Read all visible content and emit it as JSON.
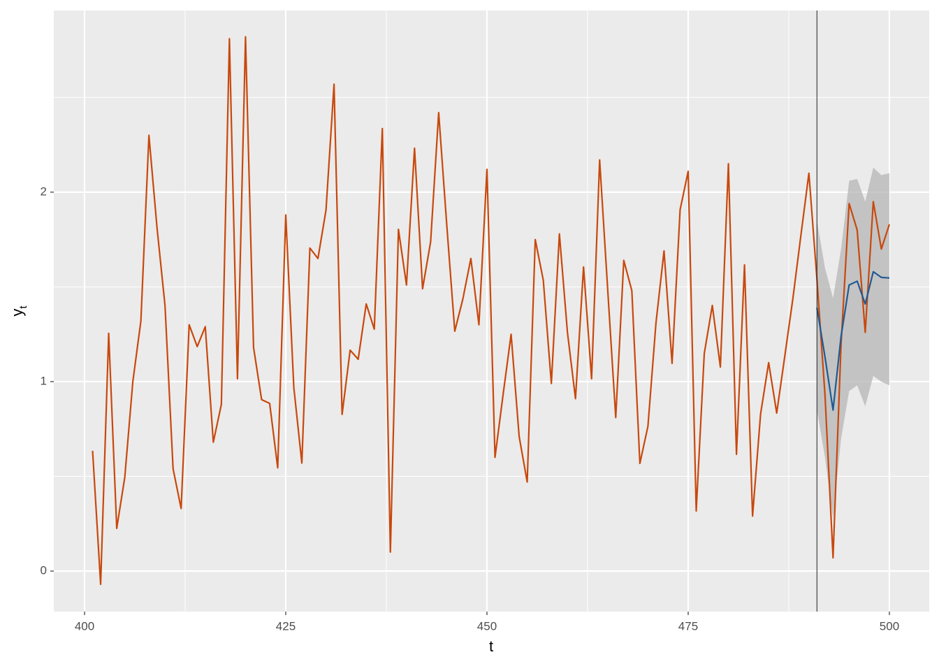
{
  "chart_data": {
    "type": "line",
    "xlabel": "t",
    "ylabel": "y",
    "ylabel_subscript": "t",
    "xlim": [
      396.18,
      504.95
    ],
    "ylim": [
      -0.214,
      2.959
    ],
    "xticks": [
      400,
      425,
      450,
      475,
      500
    ],
    "yticks": [
      0,
      1,
      2
    ],
    "minor_xticks": [
      412.5,
      437.5,
      462.5,
      487.5
    ],
    "minor_yticks": [
      0.5,
      1.5,
      2.5
    ],
    "grid": true,
    "background": "#ebebeb",
    "vline": 491,
    "band": {
      "color": "#b5b5b5",
      "x": [
        491,
        492,
        493,
        494,
        495,
        496,
        497,
        498,
        499,
        500
      ],
      "upper": [
        1.85,
        1.6,
        1.44,
        1.7,
        2.06,
        2.07,
        1.95,
        2.13,
        2.09,
        2.1
      ],
      "lower": [
        0.85,
        0.6,
        0.28,
        0.7,
        0.95,
        0.98,
        0.87,
        1.03,
        1.0,
        0.98
      ]
    },
    "series": [
      {
        "color": "#c8480c",
        "x": [
          401,
          402,
          403,
          404,
          405,
          406,
          407,
          408,
          409,
          410,
          411,
          412,
          413,
          414,
          415,
          416,
          417,
          418,
          419,
          420,
          421,
          422,
          423,
          424,
          425,
          426,
          427,
          428,
          429,
          430,
          431,
          432,
          433,
          434,
          435,
          436,
          437,
          438,
          439,
          440,
          441,
          442,
          443,
          444,
          445,
          446,
          447,
          448,
          449,
          450,
          451,
          452,
          453,
          454,
          455,
          456,
          457,
          458,
          459,
          460,
          461,
          462,
          463,
          464,
          465,
          466,
          467,
          468,
          469,
          470,
          471,
          472,
          473,
          474,
          475,
          476,
          477,
          478,
          479,
          480,
          481,
          482,
          483,
          484,
          485,
          486,
          487,
          488,
          489,
          490,
          491,
          492,
          493,
          494,
          495,
          496,
          497,
          498,
          499,
          500
        ],
        "values": [
          0.635,
          -0.07,
          1.255,
          0.225,
          0.495,
          1.0,
          1.32,
          2.3,
          1.815,
          1.4,
          0.54,
          0.33,
          1.3,
          1.185,
          1.29,
          0.68,
          0.88,
          2.81,
          1.015,
          2.82,
          1.18,
          0.905,
          0.885,
          0.545,
          1.88,
          0.97,
          0.57,
          1.705,
          1.65,
          1.905,
          2.57,
          0.827,
          1.166,
          1.118,
          1.41,
          1.277,
          2.336,
          0.1,
          1.804,
          1.51,
          2.232,
          1.49,
          1.738,
          2.42,
          1.83,
          1.266,
          1.435,
          1.65,
          1.3,
          2.12,
          0.6,
          0.93,
          1.25,
          0.71,
          0.47,
          1.75,
          1.535,
          0.99,
          1.78,
          1.26,
          0.91,
          1.605,
          1.015,
          2.17,
          1.487,
          0.81,
          1.64,
          1.48,
          0.568,
          0.764,
          1.31,
          1.69,
          1.096,
          1.908,
          2.11,
          0.317,
          1.148,
          1.402,
          1.077,
          2.15,
          0.616,
          1.616,
          0.29,
          0.83,
          1.1,
          0.834,
          1.133,
          1.435,
          1.77,
          2.1,
          1.54,
          0.93,
          0.07,
          1.2,
          1.94,
          1.8,
          1.26,
          1.95,
          1.7,
          1.83
        ]
      },
      {
        "color": "#1f5a94",
        "x": [
          491,
          492,
          493,
          494,
          495,
          496,
          497,
          498,
          499,
          500
        ],
        "values": [
          1.39,
          1.13,
          0.85,
          1.24,
          1.51,
          1.53,
          1.41,
          1.58,
          1.55,
          1.547
        ]
      }
    ]
  }
}
